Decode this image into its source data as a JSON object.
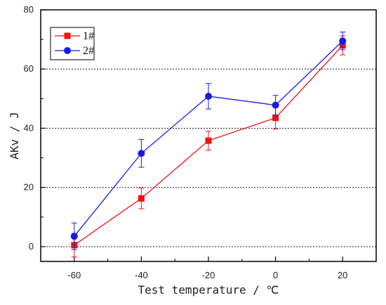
{
  "chart_data": {
    "type": "line",
    "xlabel": "Test temperature / ℃",
    "ylabel": "AKv / J",
    "xlim": [
      -70,
      30
    ],
    "ylim": [
      -5,
      80
    ],
    "xticks": [
      -60,
      -40,
      -20,
      0,
      20
    ],
    "yticks": [
      0,
      20,
      40,
      60,
      80
    ],
    "grid": "horizontal dotted at y ticks",
    "legend_position": "top-left",
    "series": [
      {
        "name": "1#",
        "color": "#ee1111",
        "marker": "square",
        "x": [
          -60,
          -40,
          -20,
          0,
          20
        ],
        "y": [
          0.5,
          16.3,
          35.8,
          43.5,
          68
        ],
        "err": [
          4,
          3.5,
          3.2,
          3.8,
          3.2
        ]
      },
      {
        "name": "2#",
        "color": "#1a1ae6",
        "marker": "circle",
        "x": [
          -60,
          -40,
          -20,
          0,
          20
        ],
        "y": [
          3.5,
          31.5,
          50.8,
          47.8,
          69.5
        ],
        "err": [
          4.5,
          4.7,
          4.3,
          3.3,
          3
        ]
      }
    ]
  }
}
